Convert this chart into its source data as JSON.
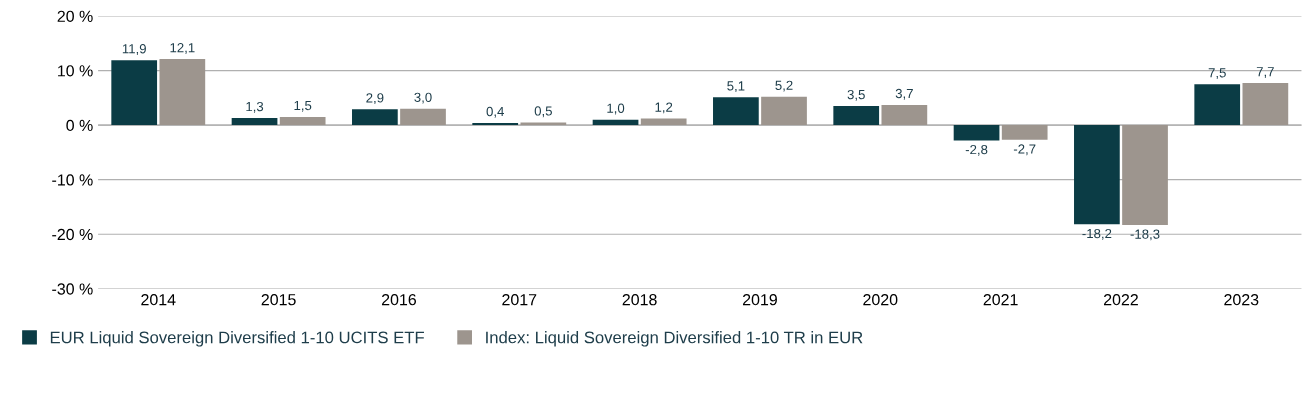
{
  "chart_data": {
    "type": "bar",
    "categories": [
      "2014",
      "2015",
      "2016",
      "2017",
      "2018",
      "2019",
      "2020",
      "2021",
      "2022",
      "2023"
    ],
    "series": [
      {
        "name": "EUR Liquid Sovereign Diversified 1-10 UCITS ETF",
        "color": "#0b3c45",
        "values": [
          11.9,
          1.3,
          2.9,
          0.4,
          1.0,
          5.1,
          3.5,
          -2.8,
          -18.2,
          7.5
        ],
        "value_labels": [
          "11,9",
          "1,3",
          "2,9",
          "0,4",
          "1,0",
          "5,1",
          "3,5",
          "-2,8",
          "-18,2",
          "7,5"
        ]
      },
      {
        "name": "Index: Liquid Sovereign Diversified 1-10 TR in EUR",
        "color": "#9d958e",
        "values": [
          12.1,
          1.5,
          3.0,
          0.5,
          1.2,
          5.2,
          3.7,
          -2.7,
          -18.3,
          7.7
        ],
        "value_labels": [
          "12,1",
          "1,5",
          "3,0",
          "0,5",
          "1,2",
          "5,2",
          "3,7",
          "-2,7",
          "-18,3",
          "7,7"
        ]
      }
    ],
    "ylim": [
      -30,
      20
    ],
    "yticks": [
      {
        "value": -30,
        "label": "-30 %"
      },
      {
        "value": -20,
        "label": "-20 %"
      },
      {
        "value": -10,
        "label": "-10 %"
      },
      {
        "value": 0,
        "label": "0 %"
      },
      {
        "value": 10,
        "label": "10 %"
      },
      {
        "value": 20,
        "label": "20 %"
      }
    ],
    "grid": "y",
    "legend": "bottom left"
  }
}
